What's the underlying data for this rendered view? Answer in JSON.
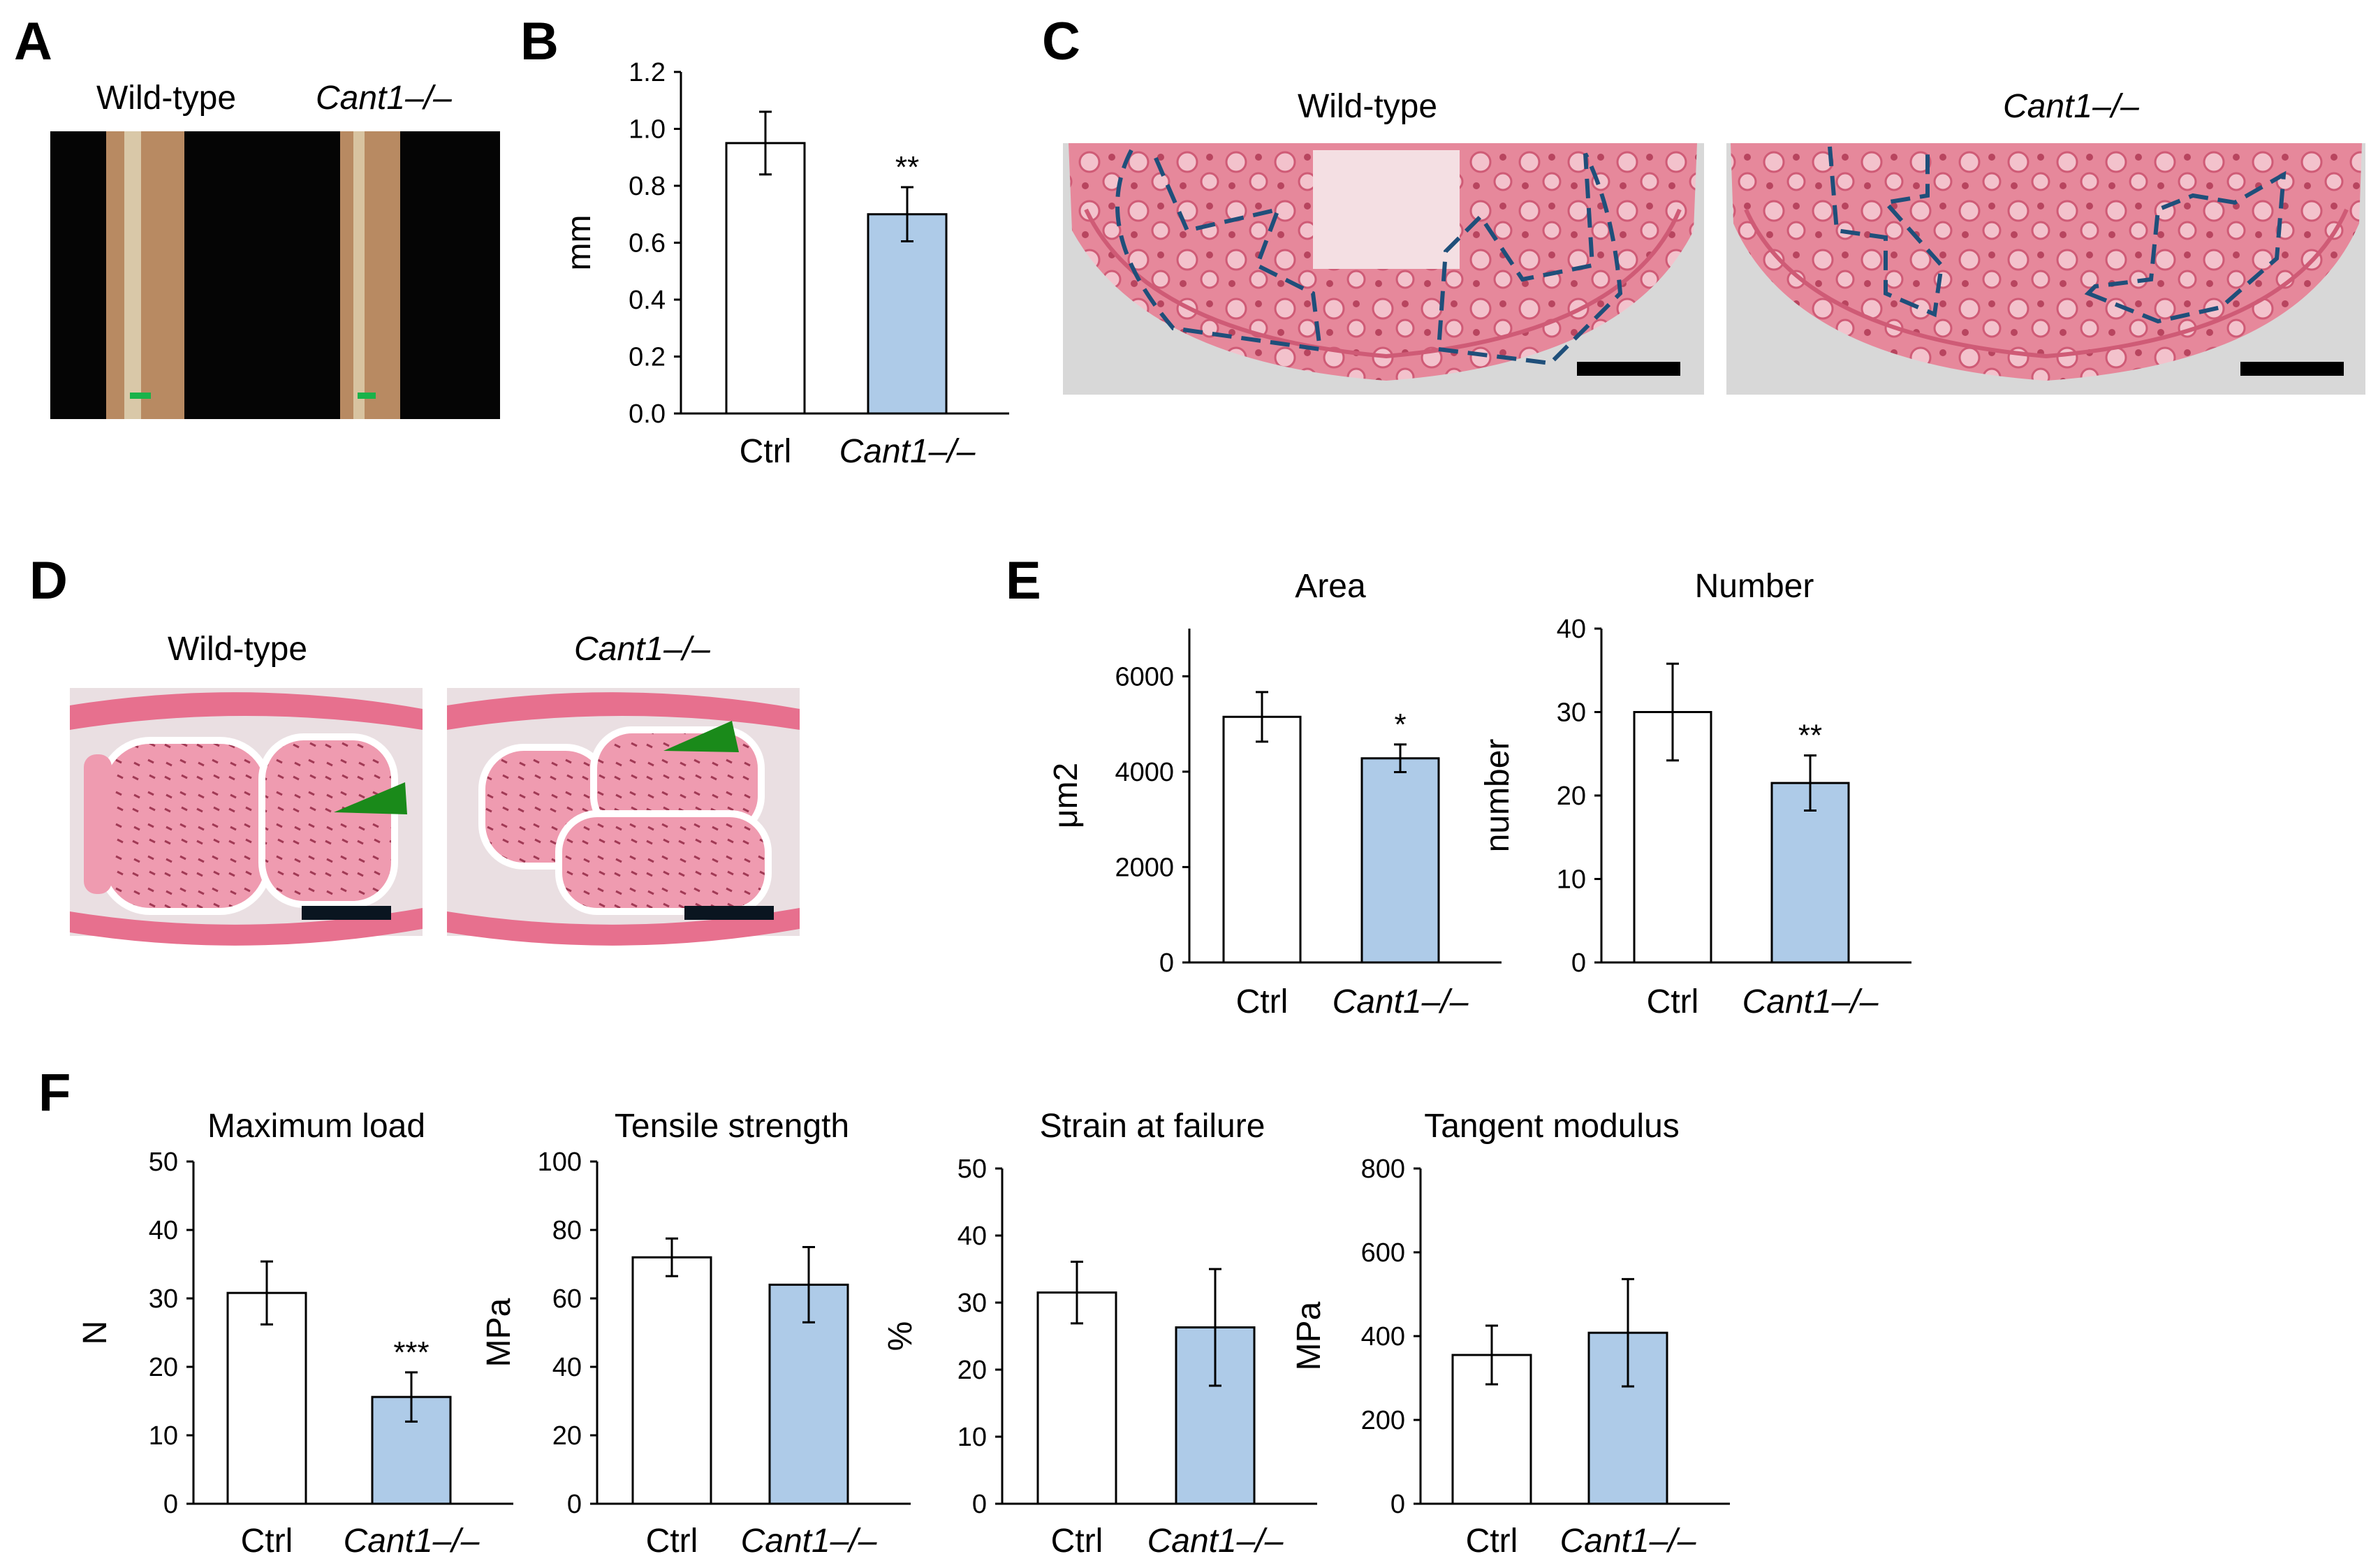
{
  "figure": {
    "panels": [
      "A",
      "B",
      "C",
      "D",
      "E",
      "F"
    ],
    "labels": {
      "wild_type": "Wild-type",
      "cant1_ko": "Cant1–/–"
    }
  },
  "colors": {
    "ctrl_bar": "#ffffff",
    "ko_bar": "#aecbe8",
    "outline": "#000000",
    "dash": "#1f4f7a",
    "he_stain": "#e8879b",
    "arrow": "#1a8a1a",
    "scalebar": "#000000",
    "tendon": "#b78a62"
  },
  "chart_data": [
    {
      "id": "B",
      "type": "bar",
      "title": "",
      "categories": [
        "Ctrl",
        "Cant1–/–"
      ],
      "values": [
        0.95,
        0.7
      ],
      "errors": [
        0.11,
        0.095
      ],
      "significance": [
        "",
        "**"
      ],
      "ylabel": "mm",
      "ylim": [
        0,
        1.2
      ],
      "yticks": [
        "0.0",
        "0.2",
        "0.4",
        "0.6",
        "0.8",
        "1.0",
        "1.2"
      ]
    },
    {
      "id": "E-area",
      "type": "bar",
      "title": "Area",
      "categories": [
        "Ctrl",
        "Cant1–/–"
      ],
      "values": [
        5150,
        4280
      ],
      "errors": [
        520,
        290
      ],
      "significance": [
        "",
        "*"
      ],
      "ylabel": "μm2",
      "ylim": [
        0,
        7000
      ],
      "yticks": [
        "0",
        "2000",
        "4000",
        "6000"
      ]
    },
    {
      "id": "E-number",
      "type": "bar",
      "title": "Number",
      "categories": [
        "Ctrl",
        "Cant1–/–"
      ],
      "values": [
        30,
        21.5
      ],
      "errors": [
        5.8,
        3.3
      ],
      "significance": [
        "",
        "**"
      ],
      "ylabel": "number",
      "ylim": [
        0,
        40
      ],
      "yticks": [
        "0",
        "10",
        "20",
        "30",
        "40"
      ]
    },
    {
      "id": "F-max-load",
      "type": "bar",
      "title": "Maximum load",
      "categories": [
        "Ctrl",
        "Cant1–/–"
      ],
      "values": [
        30.8,
        15.6
      ],
      "errors": [
        4.6,
        3.6
      ],
      "significance": [
        "",
        "***"
      ],
      "ylabel": "N",
      "ylim": [
        0,
        50
      ],
      "yticks": [
        "0",
        "10",
        "20",
        "30",
        "40",
        "50"
      ]
    },
    {
      "id": "F-tensile",
      "type": "bar",
      "title": "Tensile strength",
      "categories": [
        "Ctrl",
        "Cant1–/–"
      ],
      "values": [
        72,
        64
      ],
      "errors": [
        5.5,
        11
      ],
      "significance": [
        "",
        ""
      ],
      "ylabel": "MPa",
      "ylim": [
        0,
        100
      ],
      "yticks": [
        "0",
        "20",
        "40",
        "60",
        "80",
        "100"
      ]
    },
    {
      "id": "F-strain",
      "type": "bar",
      "title": "Strain at failure",
      "categories": [
        "Ctrl",
        "Cant1–/–"
      ],
      "values": [
        31.5,
        26.3
      ],
      "errors": [
        4.6,
        8.7
      ],
      "significance": [
        "",
        ""
      ],
      "ylabel": "%",
      "ylim": [
        0,
        50
      ],
      "yticks": [
        "0",
        "10",
        "20",
        "30",
        "40",
        "50"
      ]
    },
    {
      "id": "F-tangent",
      "type": "bar",
      "title": "Tangent modulus",
      "categories": [
        "Ctrl",
        "Cant1–/–"
      ],
      "values": [
        355,
        408
      ],
      "errors": [
        70,
        128
      ],
      "significance": [
        "",
        ""
      ],
      "ylabel": "MPa",
      "ylim": [
        0,
        800
      ],
      "yticks": [
        "0",
        "200",
        "400",
        "600",
        "800"
      ]
    }
  ]
}
